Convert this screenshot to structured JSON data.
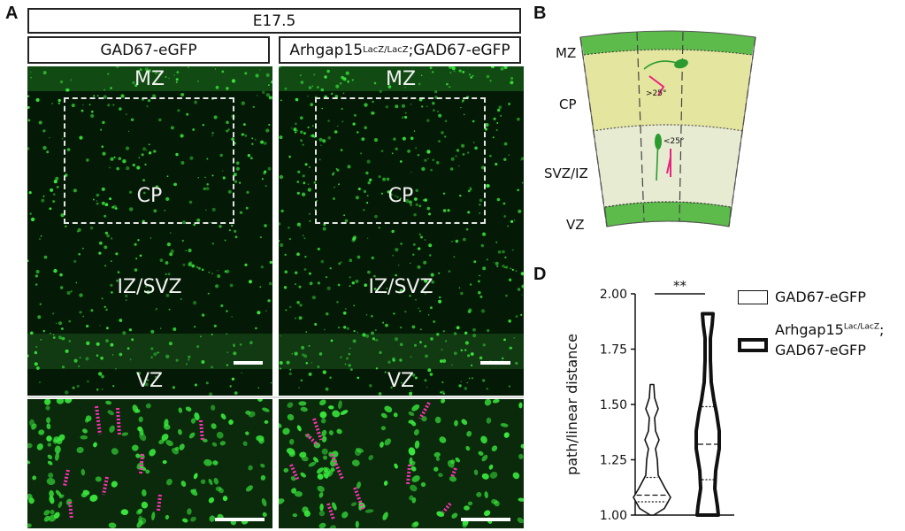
{
  "panelA": {
    "letter": "A",
    "title": "E17.5",
    "left_header": "GAD67-eGFP",
    "right_header_main": "Arhgap15",
    "right_header_sup": "LacZ/LacZ",
    "right_header_tail": ";GAD67-eGFP",
    "layers": {
      "mz": "MZ",
      "cp": "CP",
      "izsvz": "IZ/SVZ",
      "vz": "VZ"
    }
  },
  "panelB": {
    "letter": "B",
    "layers": {
      "mz": "MZ",
      "cp": "CP",
      "svziz": "SVZ/IZ",
      "vz": "VZ"
    },
    "angle_high": ">25°",
    "angle_low": "<25°"
  },
  "panelD": {
    "letter": "D",
    "significance": "**",
    "legend": {
      "wt": "GAD67-eGFP",
      "ko_line1_main": "Arhgap15",
      "ko_line1_sup": "Lac/LacZ",
      "ko_line1_tail": ";",
      "ko_line2": "GAD67-eGFP"
    }
  },
  "colors": {
    "gfp": "#39e83c",
    "marker": "#ff2fb8",
    "cortex_green": "#5dbb4b",
    "cp_fill": "#e4e59e",
    "svz_fill": "#e7ebd2"
  },
  "chart_data": {
    "type": "violin",
    "title": "",
    "xlabel": "",
    "ylabel": "path/linear distance",
    "ylim": [
      1.0,
      2.0
    ],
    "yticks": [
      "1.00",
      "1.25",
      "1.50",
      "1.75",
      "2.00"
    ],
    "series": [
      {
        "name": "GAD67-eGFP",
        "min": 1.0,
        "q1": 1.06,
        "median": 1.09,
        "q3": 1.17,
        "max": 1.59
      },
      {
        "name": "Arhgap15 Lac/LacZ; GAD67-eGFP",
        "min": 1.0,
        "q1": 1.16,
        "median": 1.32,
        "q3": 1.49,
        "max": 1.91
      }
    ]
  }
}
